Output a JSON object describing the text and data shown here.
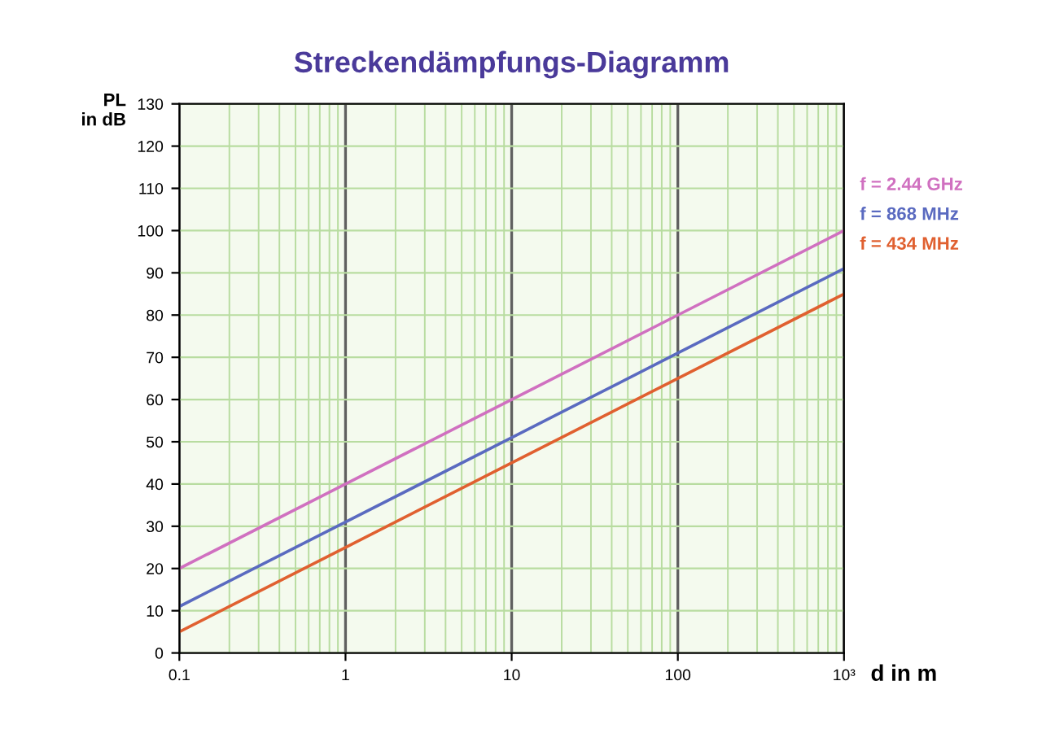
{
  "chart_data": {
    "type": "line",
    "title": "Streckendämpfungs-Diagramm",
    "xlabel": "d in m",
    "ylabel": "PL\nin dB",
    "x": [
      0.1,
      1,
      10,
      100,
      1000
    ],
    "series": [
      {
        "name": "f = 2.44 GHz",
        "color": "#d070c0",
        "values": [
          20,
          40,
          60,
          80,
          100
        ]
      },
      {
        "name": "f = 868 MHz",
        "color": "#5a6ac0",
        "values": [
          11,
          31,
          51,
          71,
          91
        ]
      },
      {
        "name": "f = 434 MHz",
        "color": "#e06030",
        "values": [
          5,
          25,
          45,
          65,
          85
        ]
      }
    ],
    "log": "x",
    "xlim": [
      0.1,
      1000
    ],
    "xticks": [
      0.1,
      1,
      10,
      100,
      {
        "value": 1000,
        "label": "10³"
      }
    ],
    "ylim": [
      0,
      130
    ],
    "yticks": [
      0,
      10,
      20,
      30,
      40,
      50,
      60,
      70,
      80,
      90,
      100,
      110,
      120,
      130
    ],
    "grid": true,
    "legend": "right",
    "marker": "none",
    "line_style": "solid"
  }
}
